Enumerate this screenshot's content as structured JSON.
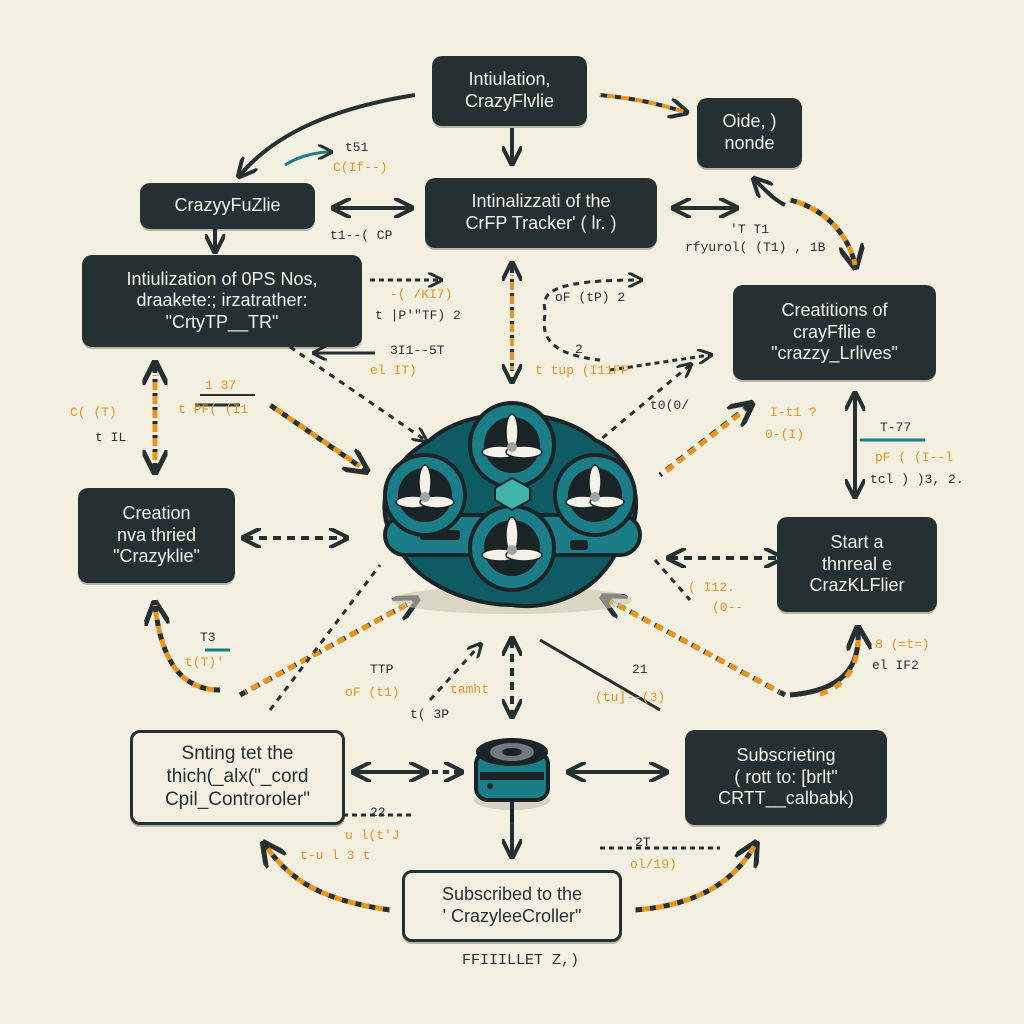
{
  "nodes": {
    "init_crazyflie": [
      "Intiulation,",
      "CrazyFlvlie"
    ],
    "oide_nonde": [
      "Oide, )",
      "nonde"
    ],
    "crazyyfuzlie": [
      "CrazyyFuZlie"
    ],
    "init_tracker": [
      "Intinalizzati of the",
      "CrFP Tracker' ( lr. )"
    ],
    "init_ops": [
      "Intiulization of 0PS Nos,",
      "draakete:; irzatrather:",
      "\"CrtyTP__TR\""
    ],
    "creations_crayflie": [
      "Creatitions of",
      "crayFflie e",
      "\"crazzy_Lrlives\""
    ],
    "creation_thried": [
      "Creation",
      "nva thried",
      "\"Crazyklie\""
    ],
    "start_thread": [
      "Start a",
      "thnreal e",
      "CrazKLFlier"
    ],
    "sinting": [
      "Snting tet the",
      "thich(_alx(\"_cord",
      "Cpil_Controroler\""
    ],
    "subscrieting": [
      "Subscrieting",
      "( rott to: [brlt\"",
      "CRTT__calbabk)"
    ],
    "subscribed": [
      "Subscribed to the",
      "' CrazyleeCroller\""
    ]
  },
  "labels": {
    "l1": "t51",
    "l2": "C(If--)",
    "l3": "t1--( СP",
    "l4": "'T T1",
    "l5": "rfyurol( (T1) , 1B",
    "l6": "-( /KI7)",
    "l7": "t |P'\"TF) 2",
    "l8": "oF (tP) 2",
    "l9": "2",
    "l10": "t tup (I11FP",
    "l11": "3I1--5T",
    "l12": "el IT)",
    "l13": "1 37",
    "l14": "t PF( (I1",
    "l15": "C( (T)",
    "l16": "t IL",
    "l17": "t0(0/",
    "l18": "I-t1 ?",
    "l19": "0-(I)",
    "l20": "T-77",
    "l21": "pF ( (I--l",
    "l22": "tcl ) )3, 2.",
    "l23": "( I12.",
    "l24": "(0--",
    "l25": "8 (=t=)",
    "l26": "el IF2",
    "l27": "T3",
    "l28": "t(T)'",
    "l29": "TTP",
    "l30": "oF (t1)",
    "l31": "t( 3P",
    "l32": "tamht",
    "l33": "21",
    "l34": "(tu]--(3)",
    "l35": "22",
    "l36": "u l(t'J",
    "l37": "t-u l 3 t",
    "l38": "2T",
    "l39": "ol/19)",
    "l40": "FFIIILLET Z,)"
  },
  "colors": {
    "dark": "#253033",
    "orange": "#e8951e",
    "teal": "#1a7d87",
    "teal_dark": "#0f5b63",
    "background": "#f3efe1"
  }
}
